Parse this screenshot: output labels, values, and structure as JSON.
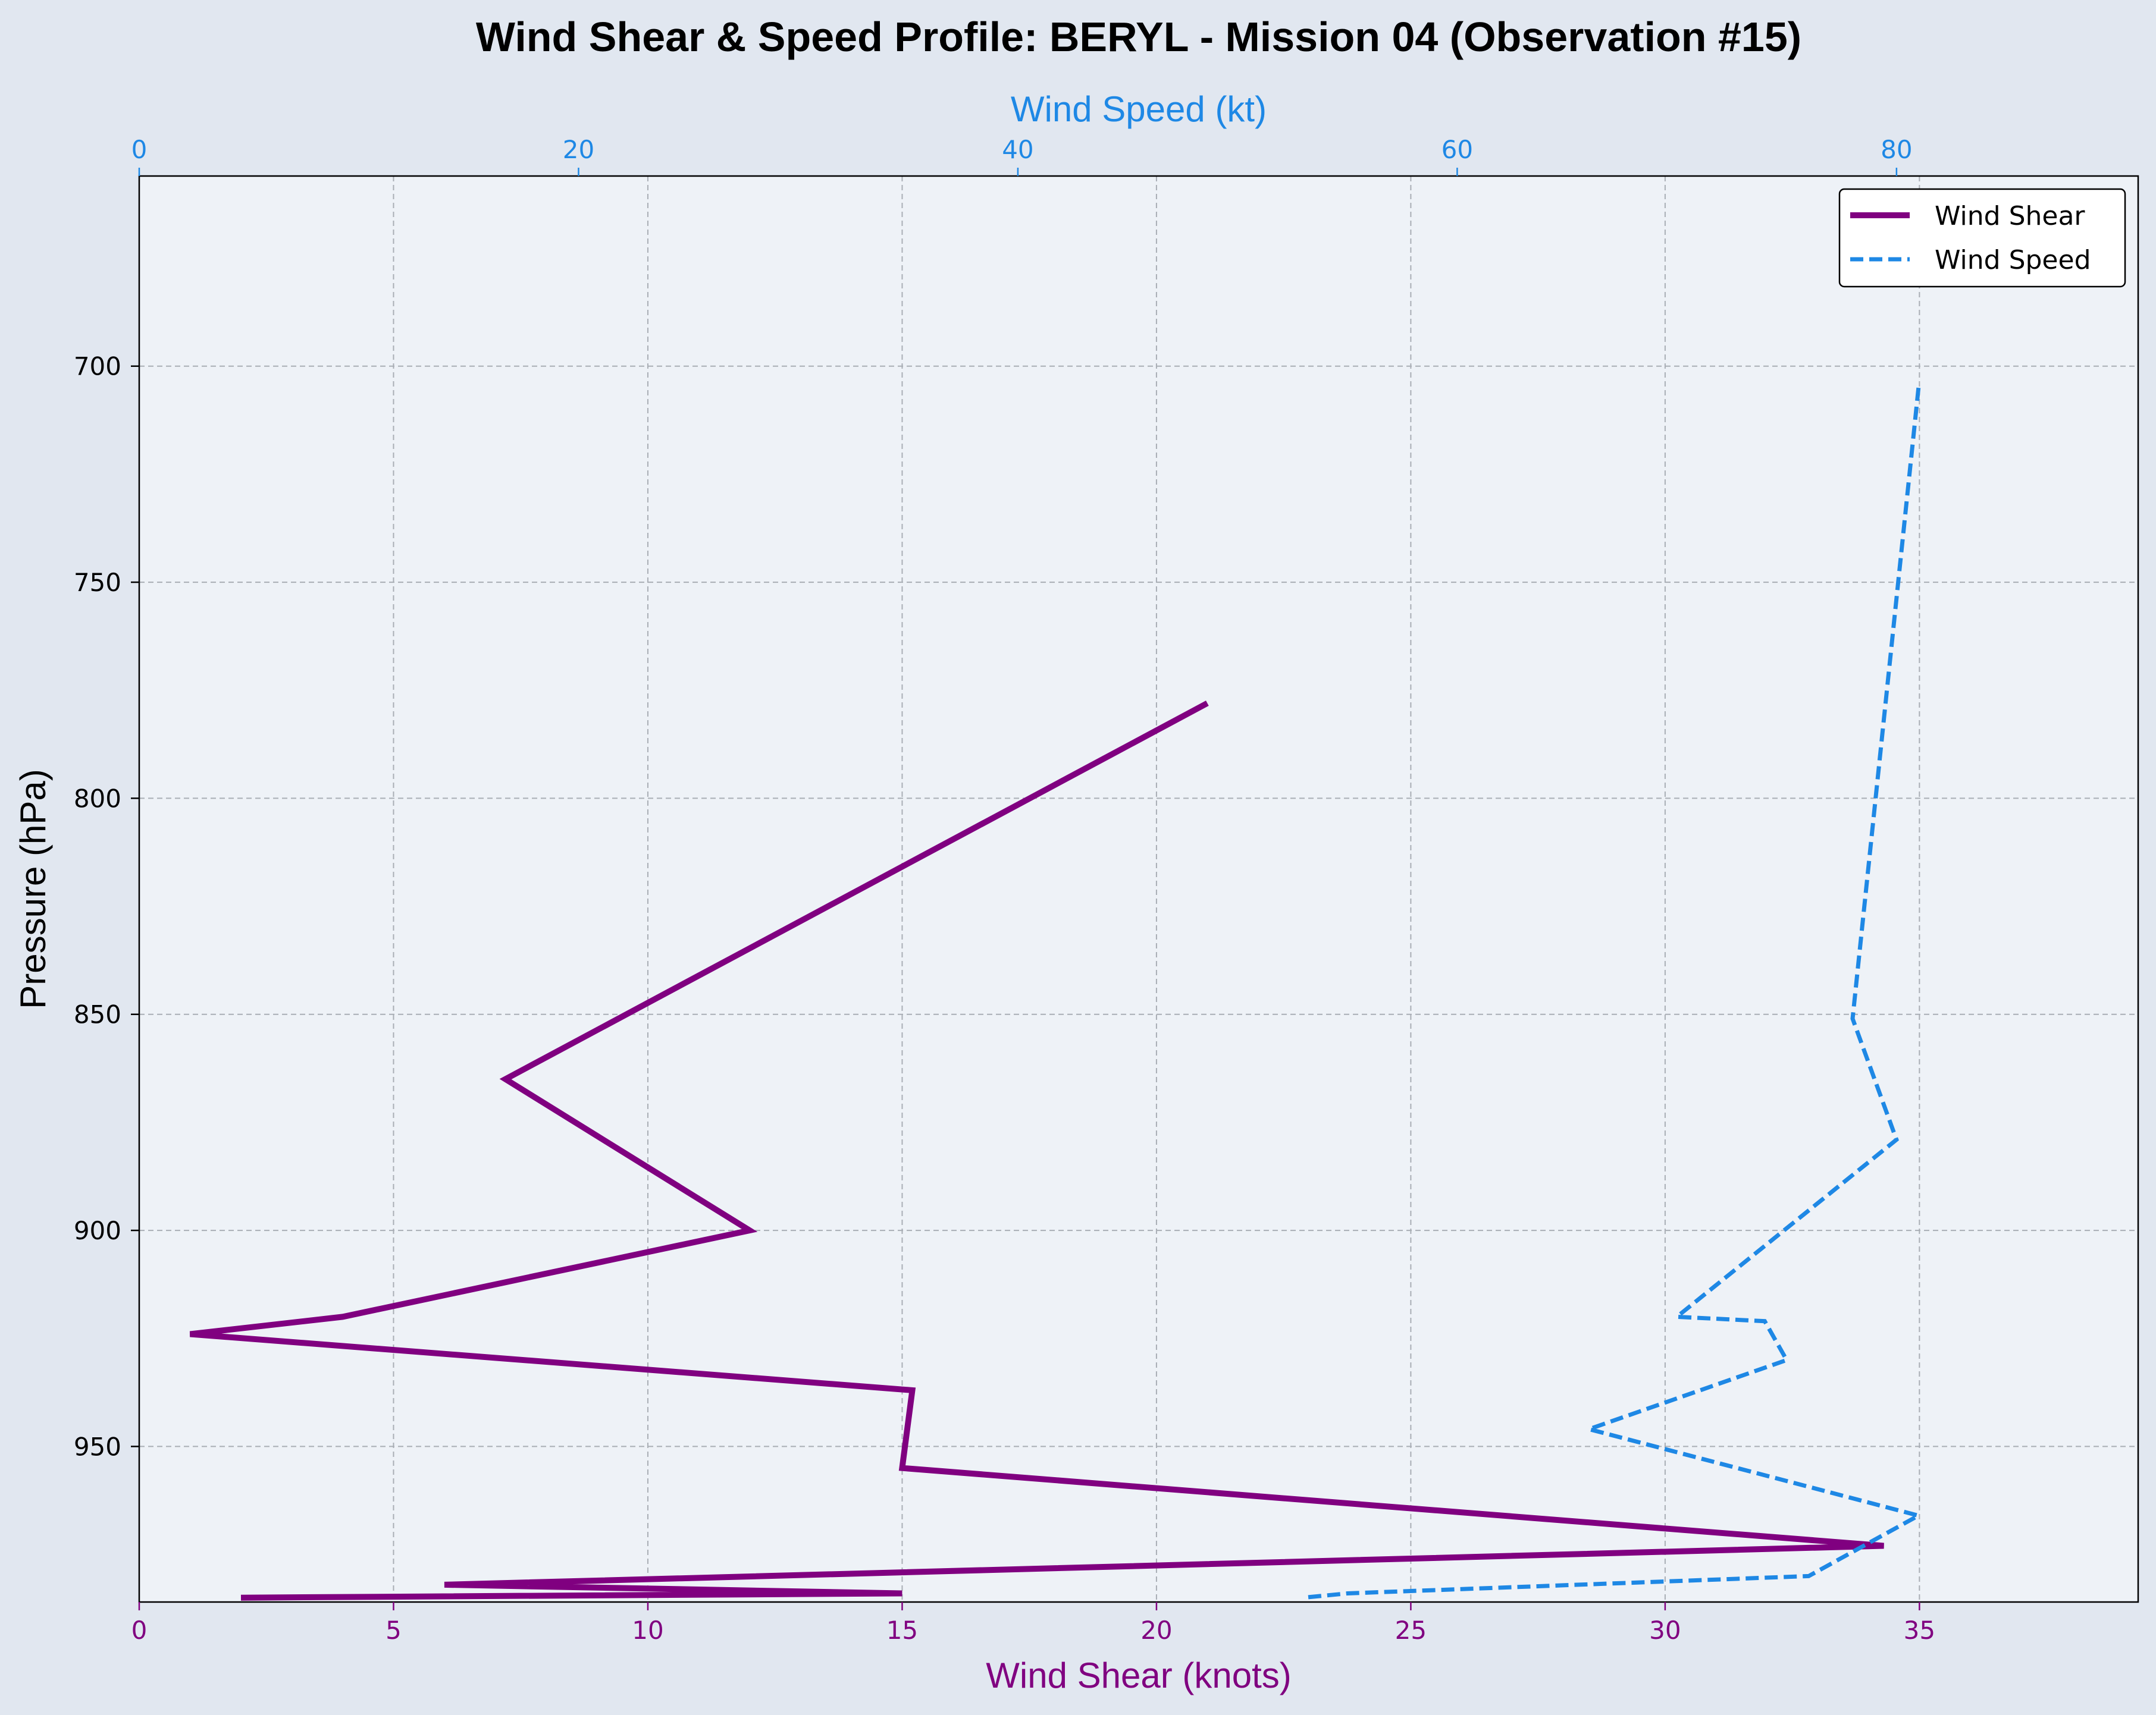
{
  "chart_data": {
    "type": "line",
    "title": "Wind Shear & Speed Profile: BERYL - Mission 04 (Observation #15)",
    "xlabel": "Wind Shear (knots)",
    "x2label": "Wind Speed (kt)",
    "ylabel": "Pressure (hPa)",
    "y_inverted": true,
    "grid": true,
    "legend_position": "top-right",
    "xlim": [
      0,
      39.3
    ],
    "x2lim": [
      0,
      91
    ],
    "ylim": [
      656,
      986
    ],
    "x_ticks": [
      "0",
      "5",
      "10",
      "15",
      "20",
      "25",
      "30",
      "35"
    ],
    "x2_ticks": [
      "0",
      "20",
      "40",
      "60",
      "80"
    ],
    "y_ticks": [
      "700",
      "750",
      "800",
      "850",
      "900",
      "950"
    ],
    "series": [
      {
        "name": "Wind Shear",
        "axis": "bottom",
        "color": "#800080",
        "style": "solid",
        "points": [
          {
            "pressure": 778,
            "value": 21.0
          },
          {
            "pressure": 865,
            "value": 7.2
          },
          {
            "pressure": 900,
            "value": 12.0
          },
          {
            "pressure": 920,
            "value": 4.0
          },
          {
            "pressure": 924,
            "value": 1.0
          },
          {
            "pressure": 937,
            "value": 15.2
          },
          {
            "pressure": 955,
            "value": 15.0
          },
          {
            "pressure": 973,
            "value": 34.3
          },
          {
            "pressure": 982,
            "value": 6.0
          },
          {
            "pressure": 984,
            "value": 15.0
          },
          {
            "pressure": 985,
            "value": 2.0
          }
        ]
      },
      {
        "name": "Wind Speed",
        "axis": "top",
        "color": "#1e88e5",
        "style": "dashed",
        "points": [
          {
            "pressure": 705,
            "value": 81.0
          },
          {
            "pressure": 851,
            "value": 78.0
          },
          {
            "pressure": 879,
            "value": 80.0
          },
          {
            "pressure": 920,
            "value": 70.0
          },
          {
            "pressure": 921,
            "value": 74.0
          },
          {
            "pressure": 930,
            "value": 75.0
          },
          {
            "pressure": 946,
            "value": 66.0
          },
          {
            "pressure": 966,
            "value": 81.0
          },
          {
            "pressure": 980,
            "value": 76.0
          },
          {
            "pressure": 984,
            "value": 55.0
          },
          {
            "pressure": 985,
            "value": 53.0
          }
        ]
      }
    ]
  }
}
